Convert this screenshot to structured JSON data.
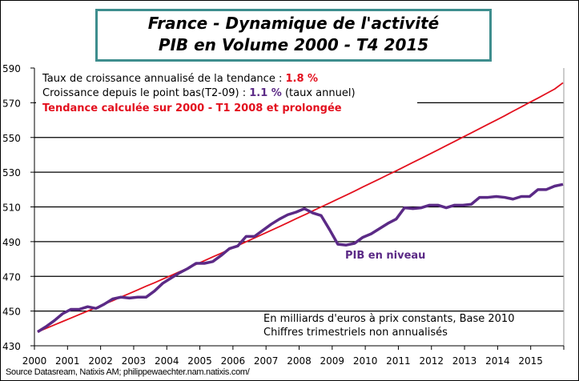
{
  "chart_data": {
    "type": "line",
    "title": [
      "France - Dynamique de l'activité",
      "PIB en Volume 2000 - T4 2015"
    ],
    "ylim": [
      430,
      590
    ],
    "yticks": [
      430,
      450,
      470,
      490,
      510,
      530,
      550,
      570,
      590
    ],
    "xticks": [
      "2000",
      "2001",
      "2002",
      "2003",
      "2004",
      "2005",
      "2006",
      "2007",
      "2008",
      "2009",
      "2010",
      "2011",
      "2012",
      "2013",
      "2014",
      "2015"
    ],
    "x_start": 2000,
    "x_end": 2016,
    "grid": "horizontal",
    "frequency": "quarterly",
    "series": [
      {
        "name": "PIB en niveau",
        "color": "#5b2a86",
        "values": [
          438,
          441,
          444.5,
          448.5,
          451,
          451,
          452.5,
          451.5,
          454,
          457,
          458,
          457.5,
          458,
          458,
          461.5,
          466,
          469,
          472,
          474.5,
          477.5,
          477.5,
          478.5,
          482,
          486,
          487.5,
          493,
          493,
          496.5,
          500,
          503,
          505.5,
          507,
          509,
          506.5,
          505,
          497,
          488.5,
          488,
          489,
          492.5,
          494.5,
          497.5,
          500.5,
          503,
          509.5,
          509,
          509.5,
          511,
          511,
          509.5,
          511,
          511,
          511.5,
          515.5,
          515.5,
          516,
          515.5,
          514.5,
          516,
          516,
          520,
          520,
          522,
          523
        ]
      },
      {
        "name": "Tendance",
        "color": "#e3101e",
        "values": [
          438.0,
          440.0,
          442.0,
          444.0,
          446.0,
          448.0,
          450.0,
          452.0,
          454.0,
          456.0,
          458.1,
          460.1,
          462.2,
          464.3,
          466.3,
          468.4,
          470.5,
          472.6,
          474.7,
          476.9,
          479.0,
          481.2,
          483.3,
          485.5,
          487.7,
          489.9,
          492.1,
          494.3,
          496.5,
          498.7,
          500.9,
          503.2,
          505.4,
          507.7,
          510.0,
          512.2,
          514.5,
          516.8,
          519.1,
          521.5,
          523.8,
          526.1,
          528.5,
          530.8,
          533.2,
          535.6,
          538.0,
          540.4,
          542.8,
          545.3,
          547.7,
          550.2,
          552.6,
          555.1,
          557.6,
          560.0,
          562.5,
          565.1,
          567.6,
          570.2,
          572.7,
          575.3,
          577.9,
          581.5
        ]
      }
    ],
    "annotations": {
      "line1_text": "Taux de croissance annualisé de la tendance : ",
      "line1_value": "1.8 %",
      "line2_text": "Croissance depuis le point bas(T2-09) : ",
      "line2_value": "1.1 %",
      "line2_suffix": " (taux annuel)",
      "line3": "Tendance calculée sur 2000 - T1 2008 et prolongée",
      "series_label": "PIB en niveau",
      "note1": "En milliards  d'euros à prix constants, Base 2010",
      "note2": "Chiffres trimestriels non annualisés"
    },
    "source": "Source Datasream, Natixis AM;  philippewaechter.nam.natixis.com/"
  }
}
